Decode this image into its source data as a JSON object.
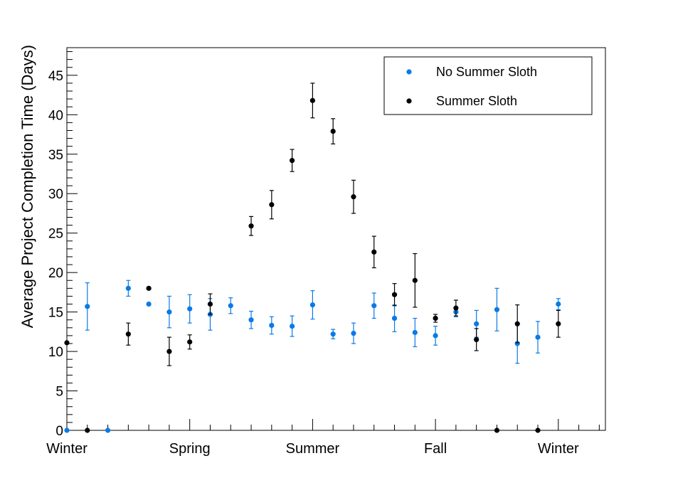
{
  "chart_data": {
    "type": "scatter",
    "title": "",
    "xlabel": "",
    "ylabel": "Average Project Completion Time (Days)",
    "xlim": [
      0,
      26.3
    ],
    "ylim": [
      0,
      48.5
    ],
    "y_ticks": [
      0,
      5,
      10,
      15,
      20,
      25,
      30,
      35,
      40,
      45
    ],
    "x_tick_labels": [
      {
        "label": "Winter",
        "x": 0
      },
      {
        "label": "Spring",
        "x": 6
      },
      {
        "label": "Summer",
        "x": 12
      },
      {
        "label": "Fall",
        "x": 18
      },
      {
        "label": "Winter",
        "x": 24
      }
    ],
    "grid": false,
    "legend": {
      "placement": "top-right"
    },
    "series": [
      {
        "name": "No Summer Sloth",
        "color": "#0a7ae6",
        "x": [
          0,
          1,
          2,
          3,
          4,
          5,
          6,
          7,
          8,
          9,
          10,
          11,
          12,
          13,
          14,
          15,
          16,
          17,
          18,
          19,
          20,
          21,
          22,
          23,
          24
        ],
        "y": [
          0,
          15.7,
          0,
          18.0,
          16.0,
          15.0,
          15.4,
          14.7,
          15.8,
          14.0,
          13.3,
          13.2,
          15.9,
          12.2,
          12.3,
          15.8,
          14.2,
          12.4,
          12.0,
          15.0,
          13.5,
          15.3,
          11.0,
          11.8,
          16.0
        ],
        "err": [
          0,
          3.0,
          0,
          1.0,
          0,
          2.0,
          1.8,
          2.0,
          1.0,
          1.1,
          1.1,
          1.3,
          1.8,
          0.6,
          1.3,
          1.6,
          1.7,
          1.8,
          1.2,
          0.6,
          1.7,
          2.7,
          2.5,
          2.0,
          0.7
        ]
      },
      {
        "name": "Summer Sloth",
        "color": "#000000",
        "x": [
          0,
          1,
          3,
          4,
          5,
          6,
          7,
          9,
          10,
          11,
          12,
          13,
          14,
          15,
          16,
          17,
          18,
          19,
          20,
          21,
          22,
          23,
          24
        ],
        "y": [
          11.1,
          0,
          12.2,
          18.0,
          10.0,
          11.2,
          16.0,
          25.9,
          28.6,
          34.2,
          41.8,
          37.9,
          29.6,
          22.6,
          17.2,
          19.0,
          14.2,
          15.5,
          11.5,
          0,
          13.5,
          0,
          13.5
        ],
        "err": [
          0,
          0,
          1.4,
          0,
          1.8,
          0.9,
          1.3,
          1.2,
          1.8,
          1.4,
          2.2,
          1.6,
          2.1,
          2.0,
          1.4,
          3.4,
          0.5,
          1.0,
          1.4,
          0,
          2.4,
          0,
          1.7
        ]
      }
    ]
  }
}
